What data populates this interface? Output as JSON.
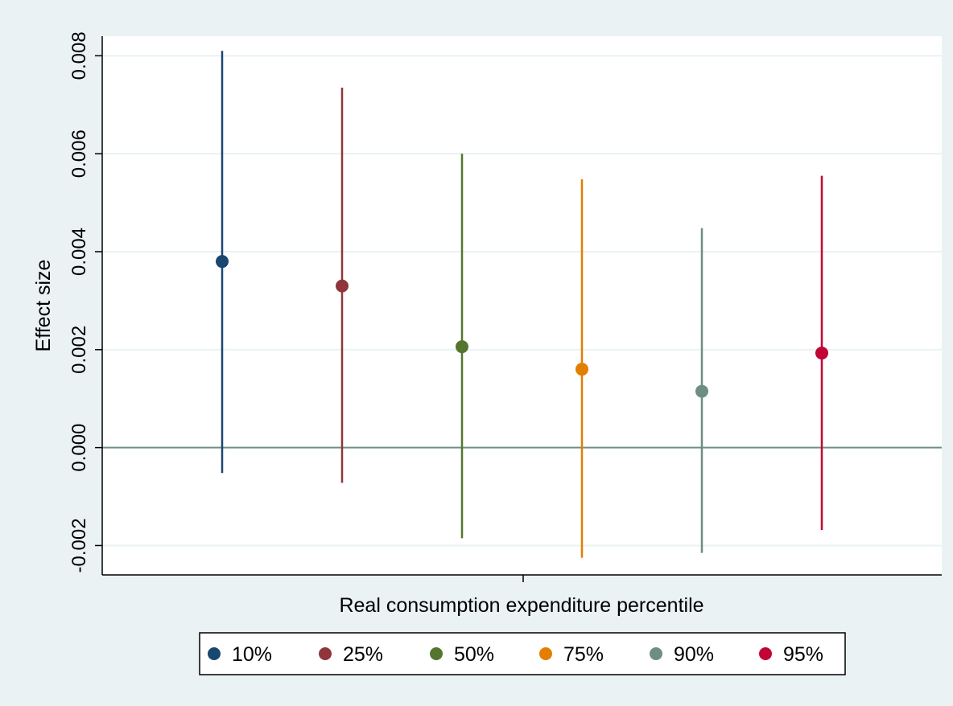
{
  "chart_data": {
    "type": "scatter",
    "title": "",
    "xlabel": "Real consumption expenditure percentile",
    "ylabel": "Effect size",
    "ylim": [
      -0.0026,
      0.0084
    ],
    "yticks": [
      -0.002,
      0.0,
      0.002,
      0.004,
      0.006,
      0.008
    ],
    "ytick_labels": [
      "-0.002",
      "0.000",
      "0.002",
      "0.004",
      "0.006",
      "0.008"
    ],
    "grid": true,
    "reference_line": 0.0,
    "legend_position": "bottom",
    "series": [
      {
        "name": "10%",
        "color": "#1a476f",
        "estimate": 0.0038,
        "ci_low": -0.00052,
        "ci_high": 0.0081
      },
      {
        "name": "25%",
        "color": "#90353b",
        "estimate": 0.0033,
        "ci_low": -0.00072,
        "ci_high": 0.00735
      },
      {
        "name": "50%",
        "color": "#55752f",
        "estimate": 0.00206,
        "ci_low": -0.00185,
        "ci_high": 0.006
      },
      {
        "name": "75%",
        "color": "#e37e00",
        "estimate": 0.0016,
        "ci_low": -0.00225,
        "ci_high": 0.00548
      },
      {
        "name": "90%",
        "color": "#6e8e84",
        "estimate": 0.00115,
        "ci_low": -0.00215,
        "ci_high": 0.00448
      },
      {
        "name": "95%",
        "color": "#c10534",
        "estimate": 0.00193,
        "ci_low": -0.00168,
        "ci_high": 0.00555
      }
    ]
  }
}
